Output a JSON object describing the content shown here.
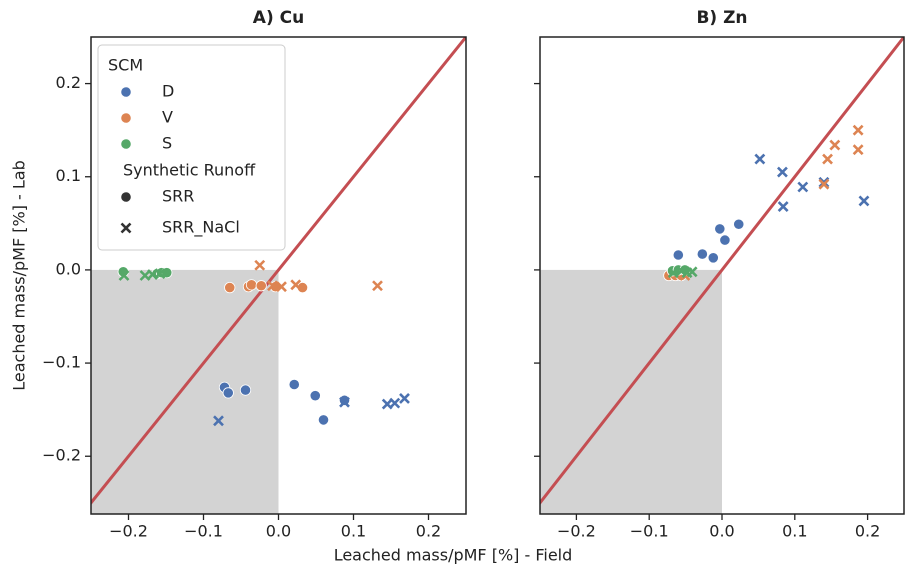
{
  "xlabel": "Leached mass/pMF [%] - Field",
  "chart_data": [
    {
      "type": "scatter",
      "title": "A) Cu",
      "ylabel": "Leached mass/pMF [%] - Lab",
      "xlim": [
        -0.25,
        0.25
      ],
      "ylim": [
        -0.262,
        0.25
      ],
      "xticks": [
        {
          "value": -0.2,
          "label": "−0.2"
        },
        {
          "value": -0.1,
          "label": "−0.1"
        },
        {
          "value": 0,
          "label": "0.0"
        },
        0.1,
        0.2
      ],
      "yticks": [
        {
          "value": -0.2,
          "label": "−0.2"
        },
        {
          "value": -0.1,
          "label": "−0.1"
        },
        {
          "value": 0,
          "label": "0.0"
        },
        0.1,
        0.2
      ],
      "ytick_labels": true,
      "shade_negative_quadrant": "#d3d3d3",
      "identity_line": "#c44e52",
      "legend": {
        "corner": "upper left",
        "title": "SCM",
        "entries": [
          {
            "name": "D",
            "color": "#4c72b0",
            "marker": "circle"
          },
          {
            "name": "V",
            "color": "#dd8452",
            "marker": "circle"
          },
          {
            "name": "S",
            "color": "#55a868",
            "marker": "circle"
          }
        ],
        "style_title": "Synthetic Runoff",
        "style_entries": [
          {
            "name": "SRR",
            "marker": "circle",
            "color": "#333333"
          },
          {
            "name": "SRR_NaCl",
            "marker": "x",
            "color": "#333333"
          }
        ]
      },
      "series": [
        {
          "color": "#4c72b0",
          "marker": "circle",
          "x": [
            -0.072,
            -0.067,
            -0.044,
            0.021,
            0.049,
            0.06,
            0.088
          ],
          "values": [
            -0.126,
            -0.132,
            -0.129,
            -0.123,
            -0.135,
            -0.161,
            -0.14
          ]
        },
        {
          "color": "#4c72b0",
          "marker": "x",
          "x": [
            -0.08,
            0.088,
            0.145,
            0.155,
            0.168
          ],
          "values": [
            -0.162,
            -0.142,
            -0.144,
            -0.143,
            -0.138
          ]
        },
        {
          "color": "#dd8452",
          "marker": "circle",
          "x": [
            -0.065,
            -0.04,
            -0.036,
            -0.023,
            -0.004,
            0.032
          ],
          "values": [
            -0.019,
            -0.018,
            -0.016,
            -0.017,
            -0.018,
            -0.019
          ]
        },
        {
          "color": "#dd8452",
          "marker": "x",
          "x": [
            -0.025,
            -0.008,
            0.004,
            0.023,
            0.132
          ],
          "values": [
            0.005,
            -0.017,
            -0.018,
            -0.016,
            -0.017
          ]
        },
        {
          "color": "#55a868",
          "marker": "circle",
          "x": [
            -0.207,
            -0.162,
            -0.156,
            -0.149
          ],
          "values": [
            -0.002,
            -0.004,
            -0.003,
            -0.003
          ]
        },
        {
          "color": "#55a868",
          "marker": "x",
          "x": [
            -0.206,
            -0.178,
            -0.168,
            -0.158
          ],
          "values": [
            -0.006,
            -0.006,
            -0.005,
            -0.004
          ]
        }
      ]
    },
    {
      "type": "scatter",
      "title": "B) Zn",
      "xlim": [
        -0.25,
        0.25
      ],
      "ylim": [
        -0.262,
        0.25
      ],
      "xticks": [
        {
          "value": -0.2,
          "label": "−0.2"
        },
        {
          "value": -0.1,
          "label": "−0.1"
        },
        {
          "value": 0,
          "label": "0.0"
        },
        0.1,
        0.2
      ],
      "yticks": [
        -0.2,
        -0.1,
        0,
        0.1,
        0.2
      ],
      "ytick_labels": false,
      "shade_negative_quadrant": "#d3d3d3",
      "identity_line": "#c44e52",
      "series": [
        {
          "color": "#4c72b0",
          "marker": "circle",
          "x": [
            -0.06,
            -0.027,
            -0.012,
            -0.003,
            0.004,
            0.023
          ],
          "values": [
            0.016,
            0.017,
            0.013,
            0.044,
            0.032,
            0.049
          ]
        },
        {
          "color": "#4c72b0",
          "marker": "x",
          "x": [
            0.052,
            0.083,
            0.084,
            0.111,
            0.14,
            0.195
          ],
          "values": [
            0.119,
            0.105,
            0.068,
            0.089,
            0.094,
            0.074
          ]
        },
        {
          "color": "#dd8452",
          "marker": "circle",
          "x": [
            -0.073,
            -0.064,
            -0.056
          ],
          "values": [
            -0.006,
            -0.006,
            -0.006
          ]
        },
        {
          "color": "#dd8452",
          "marker": "x",
          "x": [
            -0.051,
            0.14,
            0.145,
            0.155,
            0.187,
            0.187
          ],
          "values": [
            -0.006,
            0.092,
            0.119,
            0.134,
            0.15,
            0.129
          ]
        },
        {
          "color": "#55a868",
          "marker": "circle",
          "x": [
            -0.068,
            -0.06,
            -0.051
          ],
          "values": [
            -0.001,
            0,
            0
          ]
        },
        {
          "color": "#55a868",
          "marker": "x",
          "x": [
            -0.067,
            -0.056,
            -0.048,
            -0.041
          ],
          "values": [
            -0.003,
            -0.001,
            -0.003,
            -0.002
          ]
        }
      ]
    }
  ]
}
